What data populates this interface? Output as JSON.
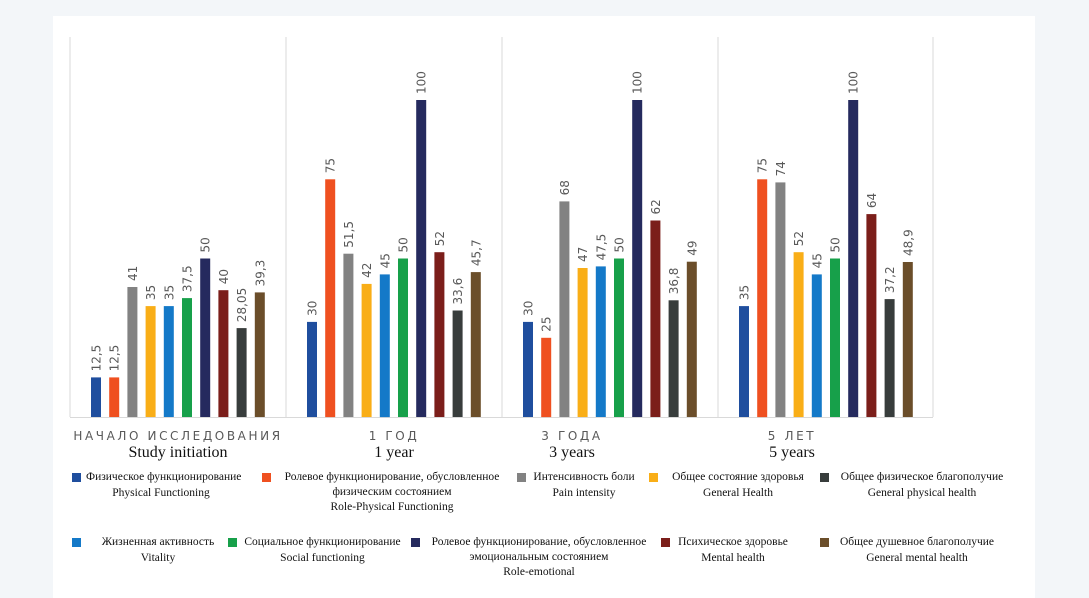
{
  "chart_data": {
    "type": "bar",
    "title": "",
    "xlabel": "",
    "ylabel": "",
    "ylim": [
      0,
      100
    ],
    "grid": "vertical category separators",
    "legend_position": "bottom",
    "categories": [
      {
        "ru": "НАЧАЛО ИССЛЕДОВАНИЯ",
        "en": "Study initiation"
      },
      {
        "ru": "1 ГОД",
        "en": "1 year"
      },
      {
        "ru": "3 ГОДА",
        "en": "3 years"
      },
      {
        "ru": "5 ЛЕТ",
        "en": "5 years"
      }
    ],
    "series": [
      {
        "name_ru": "Физическое функционирование",
        "name_en": "Physical Functioning",
        "color": "#1f4e9e",
        "values": [
          12.5,
          30,
          30,
          35
        ],
        "labels": [
          "12,5",
          "30",
          "30",
          "35"
        ]
      },
      {
        "name_ru": "Ролевое функционирование, обусловленное физическим состоянием",
        "name_en": "Role-Physical Functioning",
        "color": "#ef5020",
        "values": [
          12.5,
          75,
          25,
          75
        ],
        "labels": [
          "12,5",
          "75",
          "25",
          "75"
        ]
      },
      {
        "name_ru": "Интенсивность боли",
        "name_en": "Pain intensity",
        "color": "#828282",
        "values": [
          41,
          51.5,
          68,
          74
        ],
        "labels": [
          "41",
          "51,5",
          "68",
          "74"
        ]
      },
      {
        "name_ru": "Общее состояние здоровья",
        "name_en": "General Health",
        "color": "#f9ae17",
        "values": [
          35,
          42,
          47,
          52
        ],
        "labels": [
          "35",
          "42",
          "47",
          "52"
        ]
      },
      {
        "name_ru": "Жизненная активность",
        "name_en": "Vitality",
        "color": "#1479c8",
        "values": [
          35,
          45,
          47.5,
          45
        ],
        "labels": [
          "35",
          "45",
          "47,5",
          "45"
        ]
      },
      {
        "name_ru": "Социальное функционирование",
        "name_en": "Social functioning",
        "color": "#17a04a",
        "values": [
          37.5,
          50,
          50,
          50
        ],
        "labels": [
          "37,5",
          "50",
          "50",
          "50"
        ]
      },
      {
        "name_ru": "Ролевое функционирование, обусловленное эмоциональным состоянием",
        "name_en": "Role-emotional",
        "color": "#252a5e",
        "values": [
          50,
          100,
          100,
          100
        ],
        "labels": [
          "50",
          "100",
          "100",
          "100"
        ]
      },
      {
        "name_ru": "Психическое здоровье",
        "name_en": "Mental health",
        "color": "#7b1e1a",
        "values": [
          40,
          52,
          62,
          64
        ],
        "labels": [
          "40",
          "52",
          "62",
          "64"
        ]
      },
      {
        "name_ru": "Общее физическое благополучие",
        "name_en": "General physical health",
        "color": "#383d3c",
        "values": [
          28.05,
          33.6,
          36.8,
          37.2
        ],
        "labels": [
          "28,05",
          "33,6",
          "36,8",
          "37,2"
        ]
      },
      {
        "name_ru": "Общее душевное благополучие",
        "name_en": "General mental health",
        "color": "#6b4e2a",
        "values": [
          39.3,
          45.7,
          49,
          48.9
        ],
        "labels": [
          "39,3",
          "45,7",
          "49",
          "48,9"
        ]
      }
    ]
  },
  "legend": {
    "row1": [
      {
        "series": 0,
        "ru": "Физическое функционирование",
        "en": "Physical Functioning"
      },
      {
        "series": 1,
        "ru": "Ролевое функционирование, обусловленное",
        "ru2": "физическим состоянием",
        "en": "Role-Physical Functioning"
      },
      {
        "series": 2,
        "ru": "Интенсивность боли",
        "en": "Pain intensity"
      },
      {
        "series": 3,
        "ru": "Общее состояние здоровья",
        "en": "General Health"
      },
      {
        "series": 8,
        "ru": "Общее физическое благополучие",
        "en": "General physical health"
      }
    ],
    "row2": [
      {
        "series": 4,
        "ru": "Жизненная активность",
        "en": "Vitality"
      },
      {
        "series": 5,
        "ru": "Социальное функционирование",
        "en": "Social functioning"
      },
      {
        "series": 6,
        "ru": "Ролевое функционирование, обусловленное",
        "ru2": "эмоциональным состоянием",
        "en": "Role-emotional"
      },
      {
        "series": 7,
        "ru": "Психическое здоровье",
        "en": "Mental health"
      },
      {
        "series": 9,
        "ru": "Общее душевное благополучие",
        "en": "General mental health"
      }
    ]
  }
}
